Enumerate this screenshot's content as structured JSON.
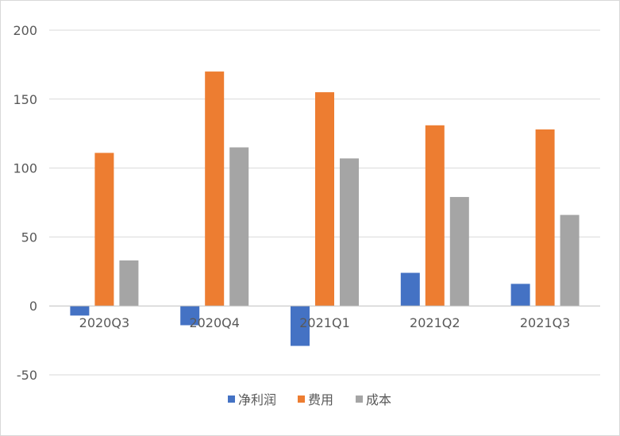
{
  "chart_data": {
    "type": "bar",
    "title": "",
    "xlabel": "",
    "ylabel": "",
    "categories": [
      "2020Q3",
      "2020Q4",
      "2021Q1",
      "2021Q2",
      "2021Q3"
    ],
    "series": [
      {
        "name": "净利润",
        "color": "#4472c4",
        "values": [
          -7,
          -14,
          -29,
          24,
          16
        ]
      },
      {
        "name": "费用",
        "color": "#ed7d31",
        "values": [
          111,
          170,
          155,
          131,
          128
        ]
      },
      {
        "name": "成本",
        "color": "#a5a5a5",
        "values": [
          33,
          115,
          107,
          79,
          66
        ]
      }
    ],
    "ylim": [
      -50,
      200
    ],
    "yticks": [
      "-50",
      "0",
      "50",
      "100",
      "150",
      "200"
    ],
    "grid": true,
    "legend_position": "bottom"
  }
}
